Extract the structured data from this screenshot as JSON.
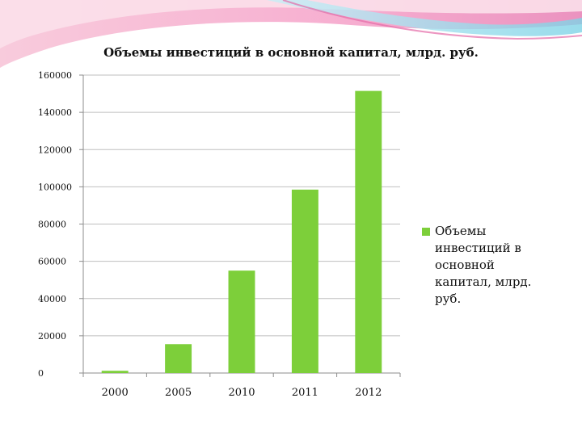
{
  "chart_data": {
    "type": "bar",
    "title": "Объемы инвестиций в основной капитал, млрд. руб.",
    "categories": [
      "2000",
      "2005",
      "2010",
      "2011",
      "2012"
    ],
    "series": [
      {
        "name": "Объемы инвестиций в основной капитал, млрд. руб.",
        "values": [
          1200,
          15500,
          55000,
          98500,
          151500
        ],
        "color": "#7dcf3a"
      }
    ],
    "yticks": [
      "0",
      "20000",
      "40000",
      "60000",
      "80000",
      "100000",
      "120000",
      "140000",
      "160000"
    ],
    "ylim": [
      0,
      160000
    ],
    "grid": true,
    "legend_position": "right"
  },
  "colors": {
    "bar": "#7dcf3a",
    "grid": "#bfbfbf",
    "axis": "#8c8c8c",
    "decor_pink": "#f3a7c8",
    "decor_magenta": "#e46aa6",
    "decor_cyan": "#7fd3e6"
  }
}
